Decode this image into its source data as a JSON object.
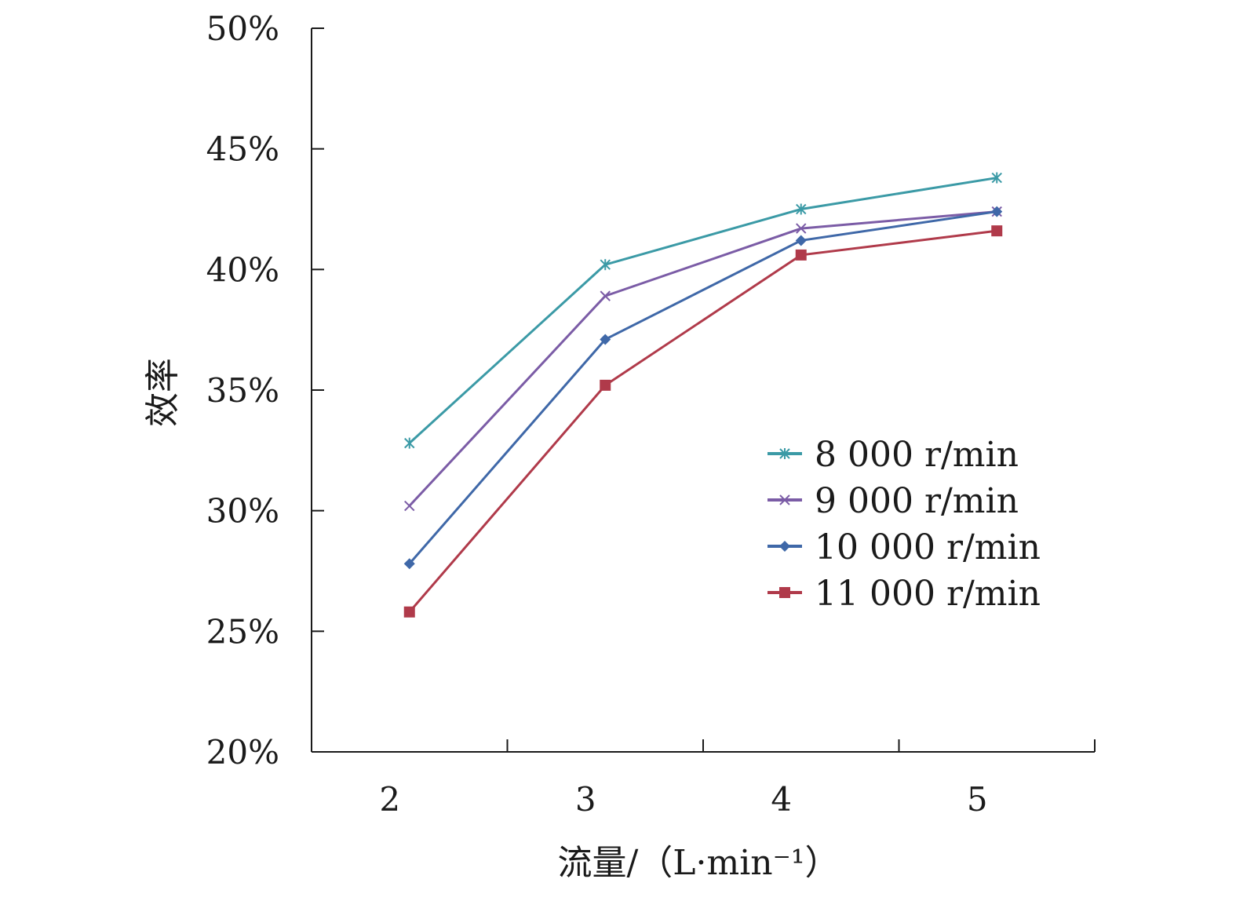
{
  "chart_data": {
    "type": "line",
    "xlabel": "流量/（L·min⁻¹）",
    "ylabel": "效率",
    "x": [
      2,
      3,
      4,
      5
    ],
    "x_ticks": [
      "2",
      "3",
      "4",
      "5"
    ],
    "xlim": [
      1.5,
      5.5
    ],
    "ylim": [
      20,
      50
    ],
    "y_ticks": [
      "20%",
      "25%",
      "30%",
      "35%",
      "40%",
      "45%",
      "50%"
    ],
    "y_tick_values": [
      20,
      25,
      30,
      35,
      40,
      45,
      50
    ],
    "grid": false,
    "legend_position": "right",
    "series": [
      {
        "name": "8 000 r/min",
        "color": "#3b9aa6",
        "marker": "asterisk",
        "values": [
          32.8,
          40.2,
          42.5,
          43.8
        ]
      },
      {
        "name": "9 000 r/min",
        "color": "#7b5ca6",
        "marker": "x",
        "values": [
          30.2,
          38.9,
          41.7,
          42.4
        ]
      },
      {
        "name": "10 000 r/min",
        "color": "#3f68a8",
        "marker": "diamond",
        "values": [
          27.8,
          37.1,
          41.2,
          42.4
        ]
      },
      {
        "name": "11 000 r/min",
        "color": "#b03a4a",
        "marker": "square",
        "values": [
          25.8,
          35.2,
          40.6,
          41.6
        ]
      }
    ]
  }
}
